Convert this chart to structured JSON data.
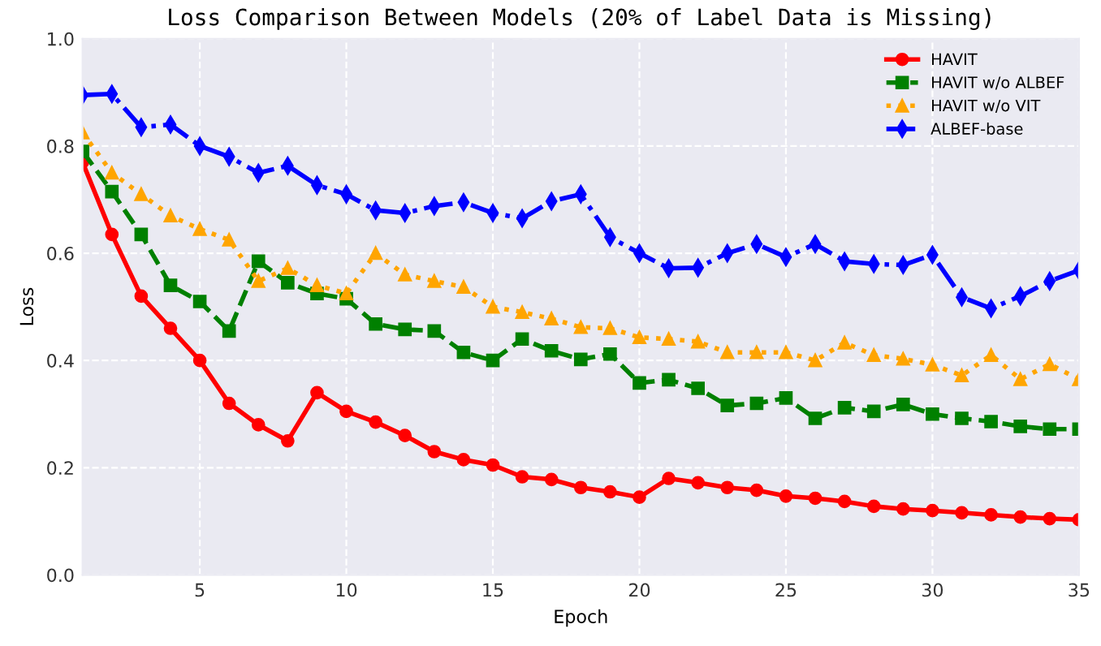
{
  "chart_data": {
    "type": "line",
    "title": "Loss Comparison Between Models (20% of Label Data is Missing)",
    "xlabel": "Epoch",
    "ylabel": "Loss",
    "x": [
      1,
      2,
      3,
      4,
      5,
      6,
      7,
      8,
      9,
      10,
      11,
      12,
      13,
      14,
      15,
      16,
      17,
      18,
      19,
      20,
      21,
      22,
      23,
      24,
      25,
      26,
      27,
      28,
      29,
      30,
      31,
      32,
      33,
      34,
      35
    ],
    "series": [
      {
        "name": "HAVIT",
        "color": "#ff0000",
        "marker": "circle",
        "line_style": "solid",
        "values": [
          0.77,
          0.635,
          0.52,
          0.46,
          0.4,
          0.32,
          0.28,
          0.25,
          0.34,
          0.305,
          0.285,
          0.26,
          0.23,
          0.215,
          0.205,
          0.183,
          0.178,
          0.163,
          0.155,
          0.145,
          0.18,
          0.172,
          0.163,
          0.158,
          0.147,
          0.143,
          0.137,
          0.128,
          0.123,
          0.12,
          0.116,
          0.112,
          0.108,
          0.105,
          0.103
        ]
      },
      {
        "name": "HAVIT w/o ALBEF",
        "color": "#008000",
        "marker": "square",
        "line_style": "dashed",
        "values": [
          0.79,
          0.715,
          0.635,
          0.54,
          0.51,
          0.455,
          0.585,
          0.545,
          0.525,
          0.515,
          0.468,
          0.458,
          0.455,
          0.415,
          0.4,
          0.44,
          0.418,
          0.402,
          0.412,
          0.358,
          0.364,
          0.348,
          0.316,
          0.32,
          0.33,
          0.292,
          0.312,
          0.305,
          0.318,
          0.3,
          0.292,
          0.286,
          0.277,
          0.272,
          0.272
        ]
      },
      {
        "name": "HAVIT w/o VIT",
        "color": "#ffa500",
        "marker": "triangle",
        "line_style": "dotted",
        "values": [
          0.825,
          0.75,
          0.71,
          0.67,
          0.645,
          0.625,
          0.548,
          0.572,
          0.54,
          0.525,
          0.6,
          0.56,
          0.548,
          0.537,
          0.5,
          0.49,
          0.478,
          0.462,
          0.46,
          0.443,
          0.44,
          0.435,
          0.415,
          0.415,
          0.415,
          0.4,
          0.433,
          0.41,
          0.403,
          0.392,
          0.372,
          0.41,
          0.365,
          0.393,
          0.365
        ]
      },
      {
        "name": "ALBEF-base",
        "color": "#0000ff",
        "marker": "diamond",
        "line_style": "dashdot",
        "values": [
          0.895,
          0.897,
          0.835,
          0.84,
          0.8,
          0.78,
          0.75,
          0.763,
          0.727,
          0.71,
          0.68,
          0.675,
          0.688,
          0.695,
          0.675,
          0.665,
          0.697,
          0.71,
          0.63,
          0.6,
          0.572,
          0.573,
          0.6,
          0.617,
          0.593,
          0.617,
          0.585,
          0.58,
          0.578,
          0.597,
          0.518,
          0.497,
          0.52,
          0.548,
          0.568
        ]
      }
    ],
    "xlim": [
      1,
      35
    ],
    "xticks": [
      5,
      10,
      15,
      20,
      25,
      30,
      35
    ],
    "ylim": [
      0.0,
      1.0
    ],
    "yticks": [
      {
        "value": 0,
        "label": "0.0"
      },
      0.2,
      0.4,
      0.6,
      0.8,
      {
        "value": 1,
        "label": "1.0"
      }
    ],
    "grid": true,
    "legend": "top right"
  }
}
